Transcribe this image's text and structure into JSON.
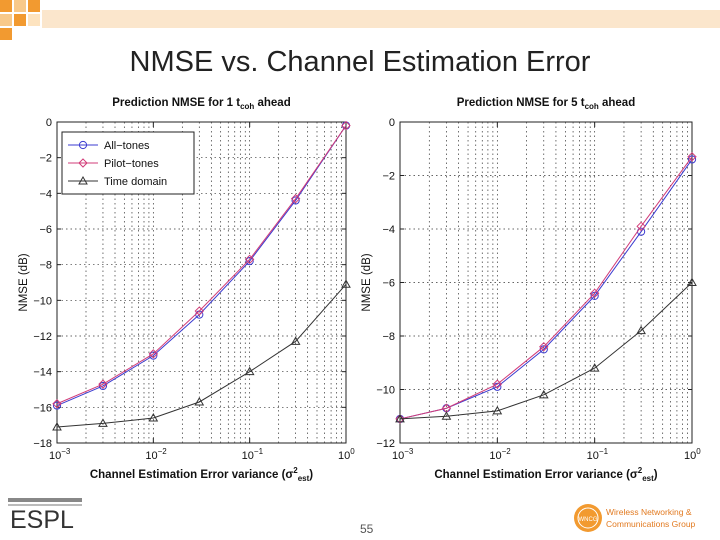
{
  "slide": {
    "title": "NMSE vs. Channel Estimation Error",
    "page_number": "55",
    "logo_left_text": "ESPL",
    "logo_right_line1": "Wireless Networking &",
    "logo_right_line2": "Communications Group",
    "logo_right_badge": "WNCG",
    "accent_colors": {
      "orange": "#f29a30",
      "light_orange": "#f8c98a"
    }
  },
  "chart_data": [
    {
      "type": "line",
      "title": "Prediction NMSE for 1 t",
      "title_sub": "coh",
      "title_suffix": " ahead",
      "xlabel": "Channel Estimation Error variance (σ",
      "xlabel_sup": "2",
      "xlabel_sub": "est",
      "xlabel_suffix": ")",
      "ylabel": "NMSE (dB)",
      "xscale": "log",
      "xlim": [
        0.001,
        1
      ],
      "ylim": [
        -18,
        0
      ],
      "yticks": [
        0,
        -2,
        -4,
        -6,
        -8,
        -10,
        -12,
        -14,
        -16,
        -18
      ],
      "ytick_labels": [
        "0",
        "−2",
        "−4",
        "−6",
        "−8",
        "−10",
        "−12",
        "−14",
        "−16",
        "−18"
      ],
      "xtick_labels": [
        {
          "base": "10",
          "exp": "−3"
        },
        {
          "base": "10",
          "exp": "−2"
        },
        {
          "base": "10",
          "exp": "−1"
        },
        {
          "base": "10",
          "exp": "0"
        }
      ],
      "grid": true,
      "legend_position": "top-left",
      "x": [
        0.001,
        0.003,
        0.01,
        0.03,
        0.1,
        0.3,
        1
      ],
      "series": [
        {
          "name": "All−tones",
          "marker": "circle",
          "color": "#3b3bd0",
          "values": [
            -15.9,
            -14.8,
            -13.1,
            -10.8,
            -7.8,
            -4.4,
            -0.2
          ]
        },
        {
          "name": "Pilot−tones",
          "marker": "diamond",
          "color": "#d23c78",
          "values": [
            -15.8,
            -14.7,
            -13.0,
            -10.6,
            -7.7,
            -4.3,
            -0.2
          ]
        },
        {
          "name": "Time domain",
          "marker": "triangle",
          "color": "#333333",
          "values": [
            -17.1,
            -16.9,
            -16.6,
            -15.7,
            -14.0,
            -12.3,
            -9.1
          ]
        }
      ]
    },
    {
      "type": "line",
      "title": "Prediction NMSE for 5 t",
      "title_sub": "coh",
      "title_suffix": " ahead",
      "xlabel": "Channel Estimation Error variance (σ",
      "xlabel_sup": "2",
      "xlabel_sub": "est",
      "xlabel_suffix": ")",
      "ylabel": "NMSE (dB)",
      "xscale": "log",
      "xlim": [
        0.001,
        1
      ],
      "ylim": [
        -12,
        0
      ],
      "yticks": [
        0,
        -2,
        -4,
        -6,
        -8,
        -10,
        -12
      ],
      "ytick_labels": [
        "0",
        "−2",
        "−4",
        "−6",
        "−8",
        "−10",
        "−12"
      ],
      "xtick_labels": [
        {
          "base": "10",
          "exp": "−3"
        },
        {
          "base": "10",
          "exp": "−2"
        },
        {
          "base": "10",
          "exp": "−1"
        },
        {
          "base": "10",
          "exp": "0"
        }
      ],
      "grid": true,
      "legend_position": "none",
      "x": [
        0.001,
        0.003,
        0.01,
        0.03,
        0.1,
        0.3,
        1
      ],
      "series": [
        {
          "marker": "circle",
          "color": "#3b3bd0",
          "values": [
            -11.1,
            -10.7,
            -9.9,
            -8.5,
            -6.5,
            -4.1,
            -1.4
          ]
        },
        {
          "marker": "diamond",
          "color": "#d23c78",
          "values": [
            -11.1,
            -10.7,
            -9.8,
            -8.4,
            -6.4,
            -3.9,
            -1.3
          ]
        },
        {
          "marker": "triangle",
          "color": "#333333",
          "values": [
            -11.1,
            -11.0,
            -10.8,
            -10.2,
            -9.2,
            -7.8,
            -6.0
          ]
        }
      ]
    }
  ]
}
